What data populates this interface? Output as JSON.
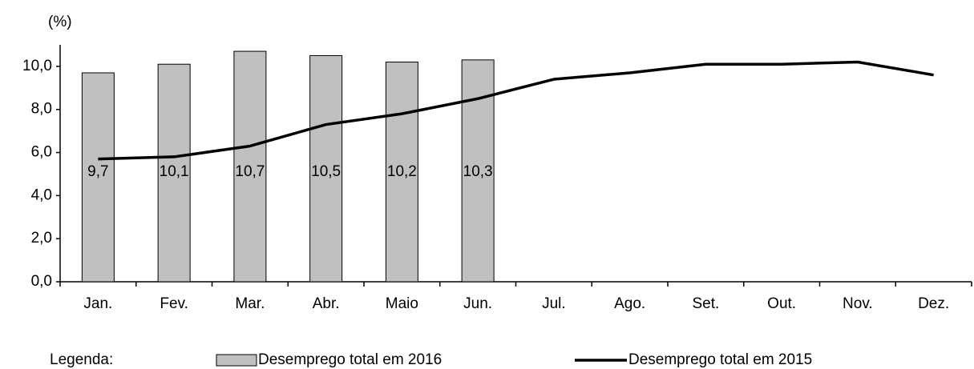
{
  "chart_data": {
    "type": "bar-line",
    "y_label": "(%)",
    "legend_title": "Legenda:",
    "categories": [
      "Jan.",
      "Fev.",
      "Mar.",
      "Abr.",
      "Maio",
      "Jun.",
      "Jul.",
      "Ago.",
      "Set.",
      "Out.",
      "Nov.",
      "Dez."
    ],
    "series": [
      {
        "name": "Desemprego total em 2016",
        "type": "bar",
        "color": "#c0c0c0",
        "values": [
          9.7,
          10.1,
          10.7,
          10.5,
          10.2,
          10.3,
          null,
          null,
          null,
          null,
          null,
          null
        ],
        "value_labels": [
          "9,7",
          "10,1",
          "10,7",
          "10,5",
          "10,2",
          "10,3",
          null,
          null,
          null,
          null,
          null,
          null
        ]
      },
      {
        "name": "Desemprego total em 2015",
        "type": "line",
        "color": "#000000",
        "values": [
          5.7,
          5.8,
          6.3,
          7.3,
          7.8,
          8.5,
          9.4,
          9.7,
          10.1,
          10.1,
          10.2,
          9.6
        ]
      }
    ],
    "ylim": [
      0,
      11
    ],
    "yticks": [
      {
        "value": 0,
        "label": "0,0"
      },
      {
        "value": 2,
        "label": "2,0"
      },
      {
        "value": 4,
        "label": "4,0"
      },
      {
        "value": 6,
        "label": "6,0"
      },
      {
        "value": 8,
        "label": "8,0"
      },
      {
        "value": 10,
        "label": "10,0"
      }
    ],
    "grid": false
  }
}
